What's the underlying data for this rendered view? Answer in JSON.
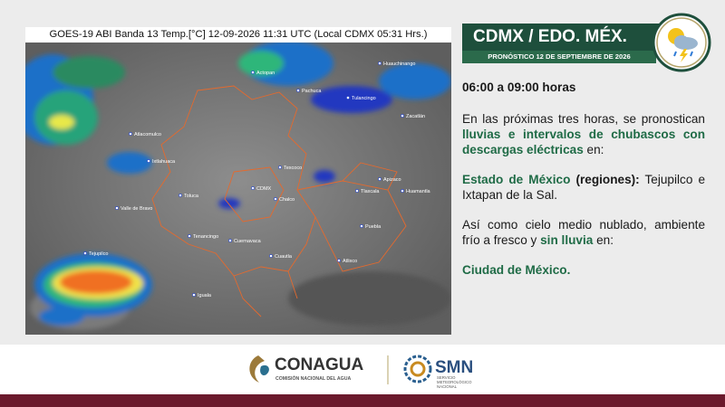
{
  "map": {
    "caption": "GOES-19 ABI Banda 13 Temp.[°C] 12-09-2026 11:31 UTC (Local CDMX  05:31 Hrs.)",
    "labels": [
      "Actopan",
      "Pachuca",
      "Tulancingo",
      "Huauchinango",
      "Zacatlán",
      "Atlacomulco",
      "Ixtlahuaca",
      "Toluca",
      "Tenancingo",
      "Valle de Bravo",
      "CDMX",
      "Texcoco",
      "Chalco",
      "Cuernavaca",
      "Cuautla",
      "Tlaxcala",
      "Apizaco",
      "Huamantla",
      "Puebla",
      "Atlixco",
      "Tejupilco",
      "Iguala"
    ]
  },
  "header": {
    "title": "CDMX / EDO. MÉX.",
    "subtitle": "PRONÓSTICO 12 DE SEPTIEMBRE DE 2026"
  },
  "body": {
    "time": "06:00 a 09:00 horas",
    "paragraphs": [
      [
        {
          "text": "En las próximas tres horas, se pronostican ",
          "style": "normal"
        },
        {
          "text": "lluvias e intervalos de chubascos con descargas eléctricas",
          "style": "green-bold"
        },
        {
          "text": " en:",
          "style": "normal"
        }
      ],
      [
        {
          "text": "Estado de México",
          "style": "green-bold"
        },
        {
          "text": " (regiones):",
          "style": "bold"
        },
        {
          "text": " Tejupilco e Ixtapan de la Sal.",
          "style": "normal"
        }
      ],
      [
        {
          "text": "Así como cielo medio nublado, ambiente frío a fresco y ",
          "style": "normal"
        },
        {
          "text": "sin lluvia",
          "style": "green-bold"
        },
        {
          "text": " en:",
          "style": "normal"
        }
      ],
      [
        {
          "text": "Ciudad de México.",
          "style": "green-bold"
        }
      ]
    ]
  },
  "footer": {
    "conagua": "CONAGUA",
    "conagua_sub": "COMISIÓN NACIONAL DEL AGUA",
    "smn": "SMN",
    "smn_sub": [
      "SERVICIO",
      "METEOROLÓGICO",
      "NACIONAL"
    ]
  }
}
